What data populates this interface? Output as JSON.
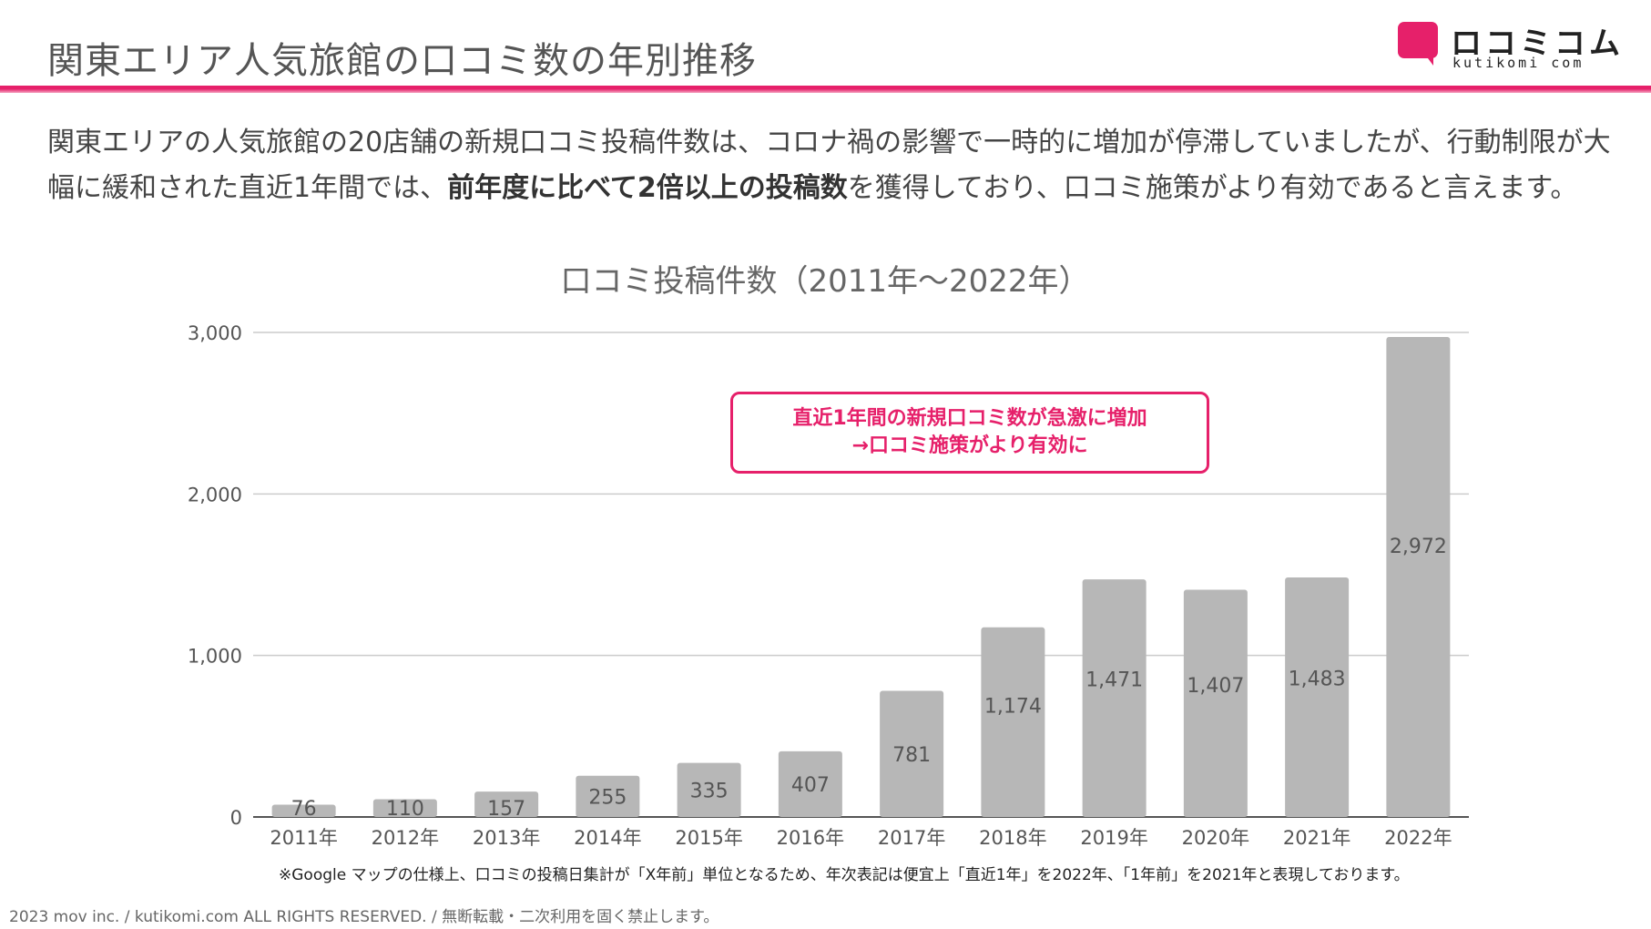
{
  "header": {
    "title": "関東エリア人気旅館の口コミ数の年別推移",
    "logo_name": "ロコミコム",
    "logo_sub": "kutikomi com",
    "accent_color": "#e6206a"
  },
  "lead": {
    "text_before": "関東エリアの人気旅館の20店舗の新規口コミ投稿件数は、コロナ禍の影響で一時的に増加が停滞していましたが、行動制限が大幅に緩和された直近1年間では、",
    "text_bold": "前年度に比べて2倍以上の投稿数",
    "text_after": "を獲得しており、口コミ施策がより有効であると言えます。"
  },
  "callout": {
    "line1": "直近1年間の新規口コミ数が急激に増加",
    "line2": "→口コミ施策がより有効に"
  },
  "chart_data": {
    "type": "bar",
    "title": "口コミ投稿件数（2011年〜2022年）",
    "xlabel": "",
    "ylabel": "",
    "categories": [
      "2011年",
      "2012年",
      "2013年",
      "2014年",
      "2015年",
      "2016年",
      "2017年",
      "2018年",
      "2019年",
      "2020年",
      "2021年",
      "2022年"
    ],
    "values": [
      76,
      110,
      157,
      255,
      335,
      407,
      781,
      1174,
      1471,
      1407,
      1483,
      2972
    ],
    "data_labels": [
      "76",
      "110",
      "157",
      "255",
      "335",
      "407",
      "781",
      "1,174",
      "1,471",
      "1,407",
      "1,483",
      "2,972"
    ],
    "ylim": [
      0,
      3000
    ],
    "yticks": [
      0,
      1000,
      2000,
      3000
    ],
    "ytick_labels": [
      "0",
      "1,000",
      "2,000",
      "3,000"
    ],
    "grid": true,
    "legend": "none",
    "bar_color": "#b7b7b7"
  },
  "footnote": "※Google マップの仕様上、口コミの投稿日集計が「X年前」単位となるため、年次表記は便宜上「直近1年」を2022年、「1年前」を2021年と表現しております。",
  "copyright": "2023 mov inc. / kutikomi.com ALL RIGHTS RESERVED. / 無断転載・二次利用を固く禁止します。"
}
